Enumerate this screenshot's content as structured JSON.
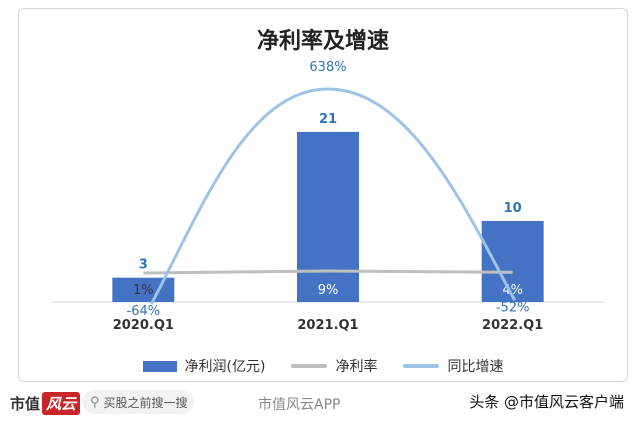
{
  "chart_data": {
    "type": "bar",
    "title": "净利率及增速",
    "categories": [
      "2020.Q1",
      "2021.Q1",
      "2022.Q1"
    ],
    "series": [
      {
        "name": "净利润(亿元)",
        "type": "bar",
        "values": [
          3,
          21,
          10
        ],
        "labels": [
          "3",
          "21",
          "10"
        ],
        "color": "#4472c4"
      },
      {
        "name": "净利率",
        "type": "line",
        "values": [
          1,
          9,
          4
        ],
        "labels": [
          "1%",
          "9%",
          "4%"
        ],
        "color": "#bfbfbf"
      },
      {
        "name": "同比增速",
        "type": "line",
        "smooth": true,
        "values": [
          -64,
          638,
          -52
        ],
        "labels": [
          "-64%",
          "638%",
          "-52%"
        ],
        "color": "#9dc3e6"
      }
    ],
    "legend_position": "bottom",
    "grid": false,
    "value_label_color": "#2e75b6"
  },
  "footer": {
    "logo_text": "市值",
    "logo_mark": "风云",
    "search_icon": "search-icon",
    "search_placeholder": "买股之前搜一搜",
    "brand_mid": "市值风云APP",
    "brand_right": "头条 @市值风云客户端"
  }
}
